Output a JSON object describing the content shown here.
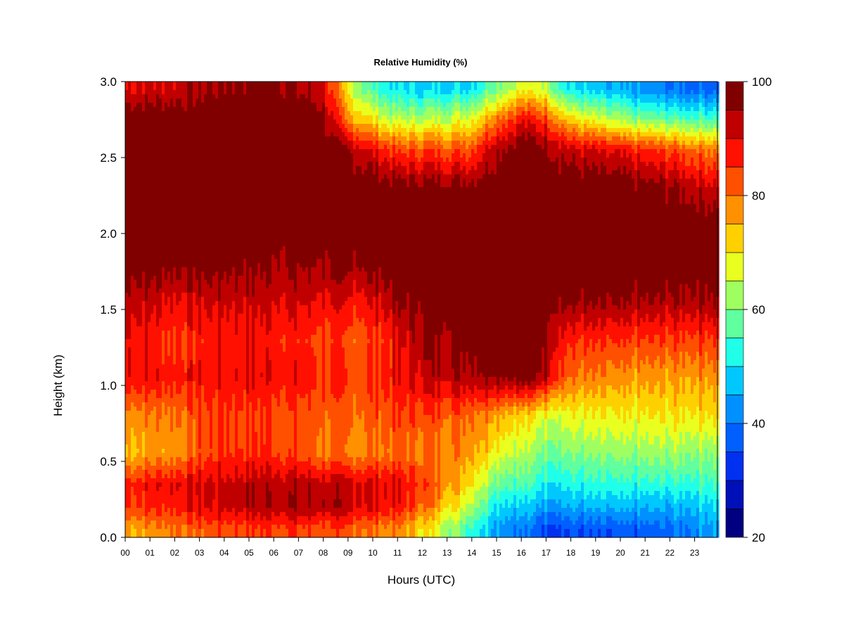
{
  "chart_data": {
    "type": "heatmap",
    "title": "Relative Humidity (%)",
    "xlabel": "Hours (UTC)",
    "ylabel": "Height (km)",
    "xlim": [
      0,
      24
    ],
    "ylim": [
      0,
      3.0
    ],
    "x_ticks": [
      "00",
      "01",
      "02",
      "03",
      "04",
      "05",
      "06",
      "07",
      "08",
      "09",
      "10",
      "11",
      "12",
      "13",
      "14",
      "15",
      "16",
      "17",
      "18",
      "19",
      "20",
      "21",
      "22",
      "23"
    ],
    "y_ticks": [
      "0.0",
      "0.5",
      "1.0",
      "1.5",
      "2.0",
      "2.5",
      "3.0"
    ],
    "colorbar": {
      "range": [
        20,
        100
      ],
      "tick_labels": [
        "20",
        "40",
        "60",
        "80",
        "100"
      ],
      "levels": [
        20,
        25,
        30,
        35,
        40,
        45,
        50,
        55,
        60,
        65,
        70,
        75,
        80,
        85,
        90,
        95,
        100
      ],
      "colors": [
        "#000080",
        "#0010b8",
        "#0030f0",
        "#0060ff",
        "#0090ff",
        "#00c8ff",
        "#20ffe8",
        "#60ffa0",
        "#a0ff60",
        "#e8ff20",
        "#ffd000",
        "#ff9000",
        "#ff5000",
        "#ff1000",
        "#c00000",
        "#800000"
      ]
    },
    "legend_placement": "right",
    "height_levels_km": [
      0.05,
      0.2,
      0.35,
      0.55,
      0.8,
      1.05,
      1.3,
      1.55,
      1.8,
      2.05,
      2.3,
      2.55,
      2.75,
      2.95
    ],
    "hours": [
      0,
      2,
      4,
      6,
      8,
      9,
      10,
      11,
      12,
      14,
      15,
      16,
      17,
      18,
      20,
      22,
      23.8
    ],
    "values": [
      [
        75,
        80,
        83,
        85,
        83,
        82,
        80,
        78,
        72,
        55,
        45,
        40,
        35,
        35,
        35,
        38,
        45
      ],
      [
        85,
        88,
        92,
        95,
        94,
        92,
        90,
        88,
        82,
        65,
        52,
        48,
        45,
        45,
        45,
        45,
        50
      ],
      [
        87,
        90,
        92,
        94,
        93,
        92,
        91,
        90,
        86,
        72,
        60,
        56,
        52,
        52,
        52,
        53,
        56
      ],
      [
        74,
        78,
        86,
        86,
        80,
        78,
        80,
        80,
        80,
        78,
        70,
        64,
        60,
        60,
        60,
        62,
        62
      ],
      [
        78,
        80,
        86,
        84,
        82,
        80,
        82,
        84,
        84,
        82,
        78,
        72,
        68,
        68,
        68,
        70,
        72
      ],
      [
        90,
        88,
        88,
        90,
        86,
        84,
        86,
        88,
        92,
        95,
        98,
        98,
        95,
        80,
        76,
        76,
        78
      ],
      [
        90,
        85,
        88,
        88,
        84,
        82,
        84,
        88,
        95,
        99,
        100,
        100,
        98,
        86,
        84,
        84,
        86
      ],
      [
        94,
        90,
        92,
        92,
        90,
        88,
        90,
        95,
        98,
        100,
        100,
        100,
        100,
        96,
        94,
        94,
        96
      ],
      [
        99,
        98,
        98,
        96,
        96,
        96,
        98,
        100,
        100,
        100,
        100,
        100,
        100,
        100,
        100,
        100,
        100
      ],
      [
        100,
        100,
        100,
        100,
        100,
        100,
        100,
        100,
        100,
        100,
        100,
        100,
        100,
        100,
        100,
        100,
        100
      ],
      [
        100,
        100,
        100,
        100,
        100,
        100,
        100,
        98,
        98,
        98,
        100,
        100,
        100,
        100,
        98,
        96,
        92
      ],
      [
        100,
        100,
        100,
        100,
        100,
        95,
        90,
        84,
        84,
        84,
        95,
        100,
        98,
        92,
        88,
        84,
        80
      ],
      [
        100,
        100,
        100,
        100,
        98,
        78,
        70,
        64,
        64,
        68,
        80,
        88,
        86,
        72,
        62,
        58,
        56
      ],
      [
        90,
        92,
        96,
        98,
        92,
        68,
        56,
        50,
        48,
        50,
        60,
        68,
        66,
        50,
        44,
        40,
        38
      ]
    ]
  }
}
